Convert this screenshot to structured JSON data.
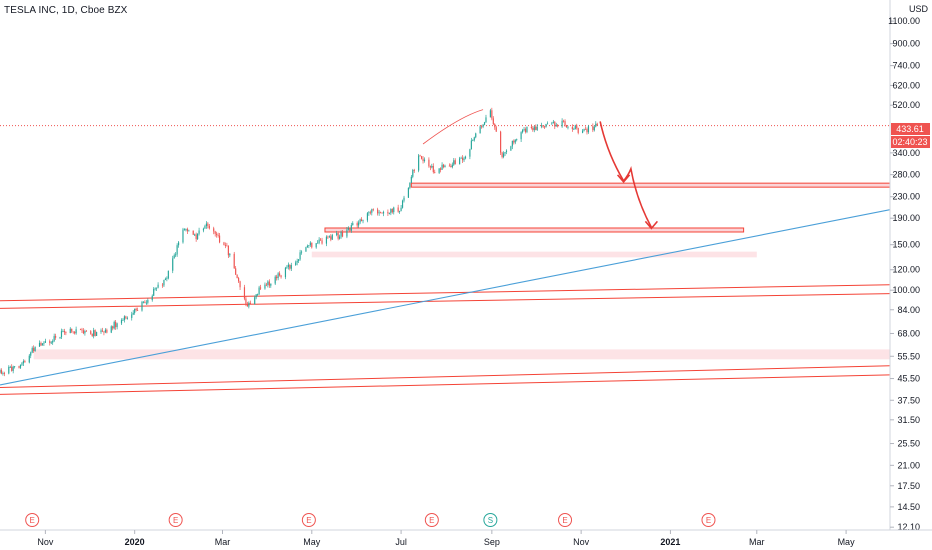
{
  "header": {
    "symbol_title": "TESLA INC, 1D, Cboe BZX"
  },
  "price_axis": {
    "currency": "USD",
    "scale": "log",
    "ticks": [
      "1100.00",
      "900.00",
      "740.00",
      "620.00",
      "520.00",
      "340.00",
      "280.00",
      "230.00",
      "190.00",
      "150.00",
      "120.00",
      "100.00",
      "84.00",
      "68.00",
      "55.50",
      "45.50",
      "37.50",
      "31.50",
      "25.50",
      "21.00",
      "17.50",
      "14.50",
      "12.10"
    ],
    "last_price": "433.61",
    "countdown": "02:40:23"
  },
  "time_axis": {
    "labels": [
      "Nov",
      "2020",
      "Mar",
      "May",
      "Jul",
      "Sep",
      "Nov",
      "2021",
      "Mar",
      "May"
    ]
  },
  "events": [
    {
      "letter": "E",
      "type": "earnings"
    },
    {
      "letter": "E",
      "type": "earnings"
    },
    {
      "letter": "E",
      "type": "earnings"
    },
    {
      "letter": "E",
      "type": "earnings"
    },
    {
      "letter": "S",
      "type": "split"
    },
    {
      "letter": "E",
      "type": "earnings"
    },
    {
      "letter": "E",
      "type": "earnings"
    }
  ],
  "colors": {
    "up": "#26a69a",
    "down": "#ef5350",
    "level": "#f44336",
    "zone": "#fde3e6",
    "trendline": "#4a9fd8",
    "axis_line": "#d1d4dc"
  },
  "chart_data": {
    "type": "candlestick",
    "title": "TESLA INC, 1D, Cboe BZX",
    "y_scale": "log",
    "ylim": [
      11.8,
      1270
    ],
    "x_range": [
      "2019-10-01",
      "2021-05-31"
    ],
    "anchors": [
      [
        "2019-10-01",
        48
      ],
      [
        "2019-10-15",
        51
      ],
      [
        "2019-10-24",
        59
      ],
      [
        "2019-11-15",
        69
      ],
      [
        "2019-12-10",
        68
      ],
      [
        "2020-01-06",
        88
      ],
      [
        "2020-01-22",
        110
      ],
      [
        "2020-02-04",
        175
      ],
      [
        "2020-02-12",
        162
      ],
      [
        "2020-02-19",
        182
      ],
      [
        "2020-03-04",
        145
      ],
      [
        "2020-03-18",
        85
      ],
      [
        "2020-03-24",
        98
      ],
      [
        "2020-04-10",
        115
      ],
      [
        "2020-04-30",
        150
      ],
      [
        "2020-05-20",
        163
      ],
      [
        "2020-06-10",
        200
      ],
      [
        "2020-06-30",
        205
      ],
      [
        "2020-07-13",
        330
      ],
      [
        "2020-07-24",
        290
      ],
      [
        "2020-08-12",
        320
      ],
      [
        "2020-08-31",
        500
      ],
      [
        "2020-09-08",
        330
      ],
      [
        "2020-09-22",
        420
      ],
      [
        "2020-10-05",
        430
      ],
      [
        "2020-10-20",
        445
      ],
      [
        "2020-11-02",
        410
      ],
      [
        "2020-11-12",
        433.61
      ]
    ],
    "annotations": {
      "horizontal_levels": [
        255,
        171
      ],
      "zones": [
        [
          134,
          141
        ],
        [
          54,
          59
        ]
      ],
      "sloped_lines": [
        {
          "from": [
            "2019-10-01",
            91
          ],
          "to": [
            "2021-05-31",
            105
          ]
        },
        {
          "from": [
            "2019-10-01",
            85
          ],
          "to": [
            "2021-05-31",
            97
          ]
        },
        {
          "from": [
            "2019-10-01",
            42
          ],
          "to": [
            "2021-05-31",
            51
          ]
        },
        {
          "from": [
            "2019-10-01",
            39.5
          ],
          "to": [
            "2021-05-31",
            47
          ]
        }
      ],
      "trendline": {
        "from": [
          "2019-10-01",
          43
        ],
        "to": [
          "2021-05-31",
          205
        ]
      },
      "projection_path": [
        [
          "2020-11-14",
          450
        ],
        [
          "2020-11-30",
          265
        ],
        [
          "2020-12-05",
          295
        ],
        [
          "2020-12-19",
          175
        ]
      ],
      "sketch_arc": [
        [
          "2020-07-16",
          368
        ],
        [
          "2020-08-10",
          470
        ],
        [
          "2020-08-26",
          500
        ]
      ]
    }
  }
}
